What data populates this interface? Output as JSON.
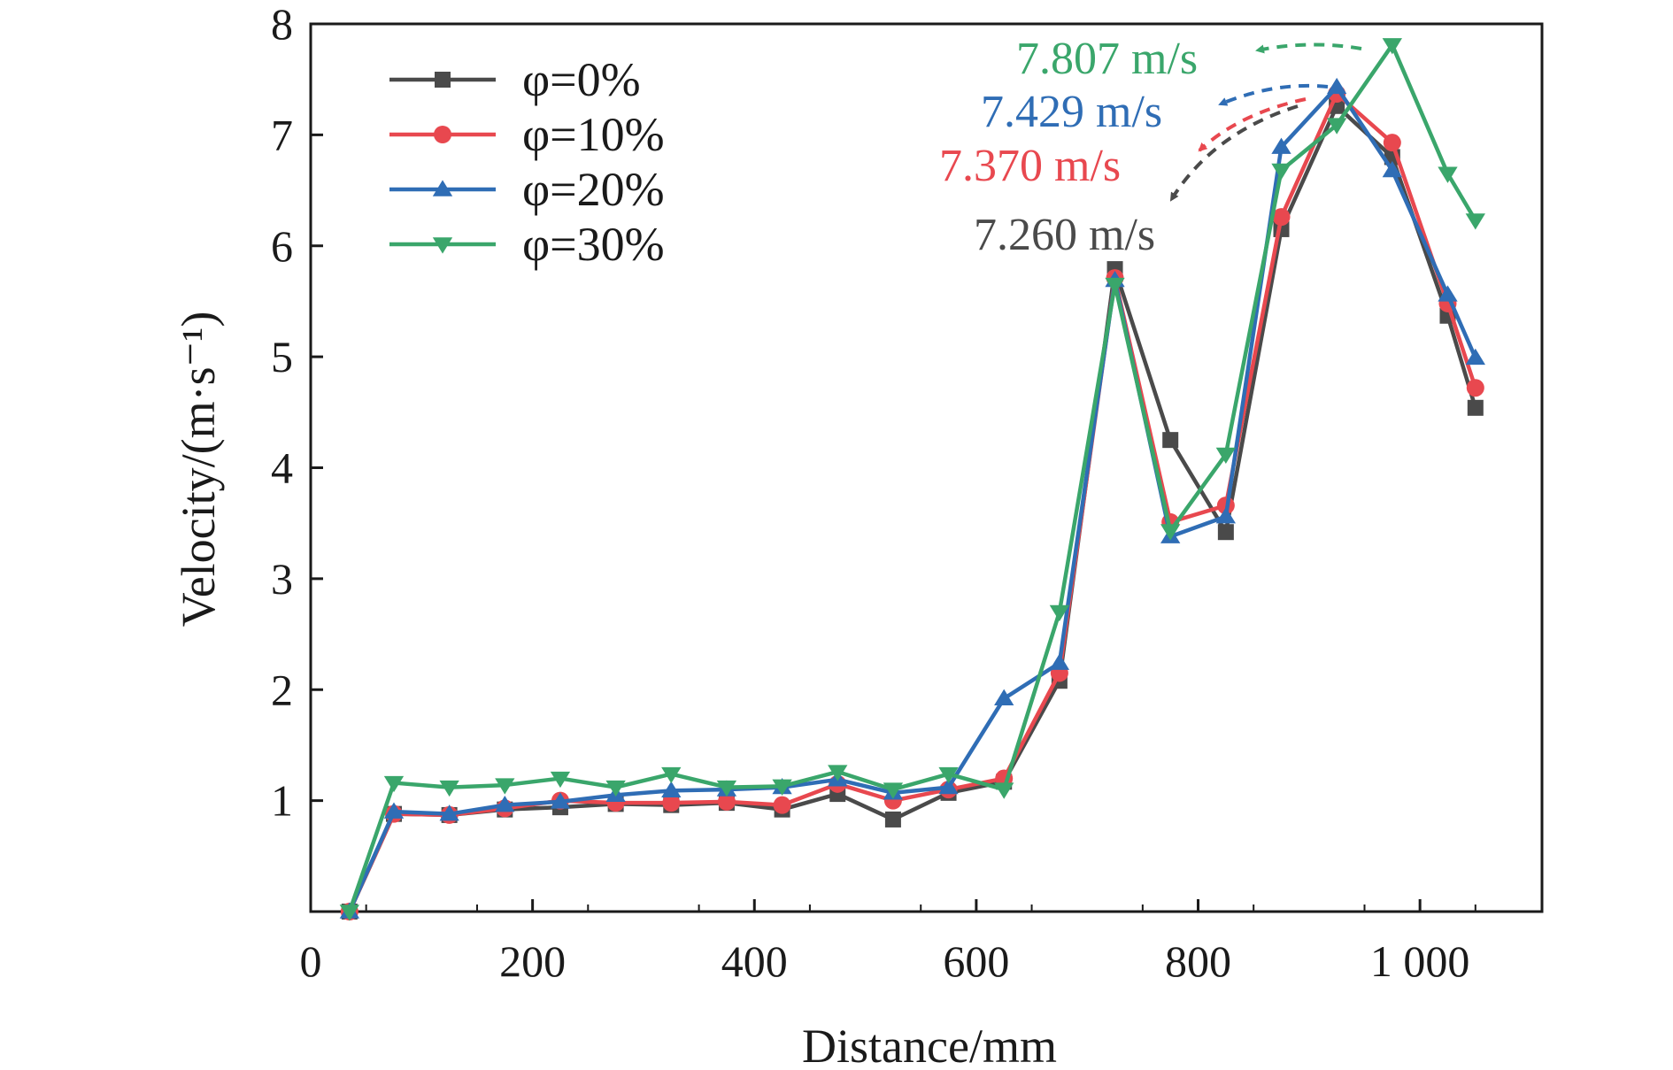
{
  "chart_data": {
    "type": "line",
    "xlabel": "Distance/mm",
    "ylabel": "Velocity/(m·s⁻¹)",
    "xlim": [
      0,
      1110
    ],
    "ylim": [
      0,
      8
    ],
    "x_ticks": [
      0,
      200,
      400,
      600,
      800,
      1000
    ],
    "x_tick_labels": [
      "0",
      "200",
      "400",
      "600",
      "800",
      "1 000"
    ],
    "y_ticks": [
      1,
      2,
      3,
      4,
      5,
      6,
      7,
      8
    ],
    "y_tick_labels": [
      "1",
      "2",
      "3",
      "4",
      "5",
      "6",
      "7",
      "8"
    ],
    "grid": false,
    "legend_position": "top-left",
    "x": [
      35,
      75,
      125,
      175,
      225,
      275,
      325,
      375,
      425,
      475,
      525,
      575,
      625,
      675,
      725,
      775,
      825,
      875,
      925,
      975,
      1025,
      1050
    ],
    "series": [
      {
        "name": "φ=0%",
        "color": "#4a4a4a",
        "marker": "square",
        "values": [
          0.0,
          0.88,
          0.87,
          0.92,
          0.94,
          0.97,
          0.96,
          0.98,
          0.92,
          1.06,
          0.83,
          1.07,
          1.17,
          2.08,
          5.79,
          4.25,
          3.42,
          6.15,
          7.26,
          6.8,
          5.37,
          4.54
        ]
      },
      {
        "name": "φ=10%",
        "color": "#e8484f",
        "marker": "circle",
        "values": [
          0.0,
          0.88,
          0.87,
          0.93,
          1.0,
          0.98,
          0.98,
          0.99,
          0.96,
          1.15,
          1.0,
          1.1,
          1.2,
          2.15,
          5.71,
          3.51,
          3.66,
          6.26,
          7.37,
          6.93,
          5.48,
          4.72
        ]
      },
      {
        "name": "φ=20%",
        "color": "#2f6db5",
        "marker": "triangle-up",
        "values": [
          0.0,
          0.9,
          0.88,
          0.96,
          0.99,
          1.05,
          1.09,
          1.1,
          1.12,
          1.19,
          1.07,
          1.12,
          1.92,
          2.24,
          5.69,
          3.38,
          3.56,
          6.89,
          7.43,
          6.68,
          5.56,
          4.99
        ]
      },
      {
        "name": "φ=30%",
        "color": "#3aa66b",
        "marker": "triangle-down",
        "values": [
          0.0,
          1.16,
          1.12,
          1.14,
          1.2,
          1.12,
          1.24,
          1.12,
          1.13,
          1.26,
          1.1,
          1.24,
          1.1,
          2.7,
          5.65,
          3.43,
          4.12,
          6.68,
          7.09,
          7.81,
          6.65,
          6.23
        ]
      }
    ],
    "annotations": [
      {
        "text": "7.807 m/s",
        "color": "#3aa66b",
        "points_to": [
          975,
          7.81
        ]
      },
      {
        "text": "7.429 m/s",
        "color": "#2f6db5",
        "points_to": [
          925,
          7.43
        ]
      },
      {
        "text": "7.370 m/s",
        "color": "#e8484f",
        "points_to": [
          925,
          7.37
        ]
      },
      {
        "text": "7.260 m/s",
        "color": "#4a4a4a",
        "points_to": [
          925,
          7.26
        ]
      }
    ]
  }
}
